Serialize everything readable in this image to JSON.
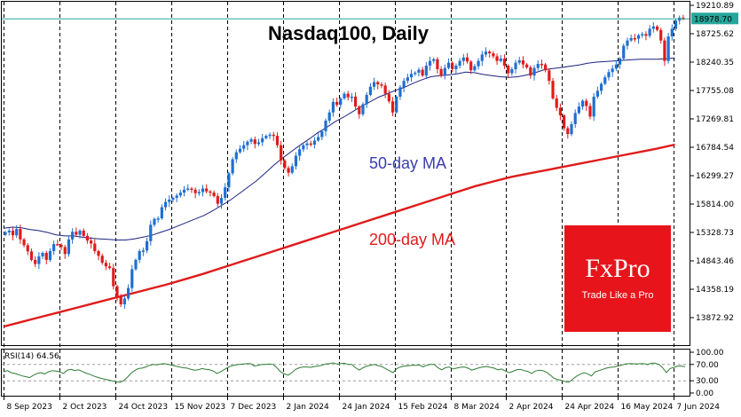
{
  "chart_data": {
    "type": "candlestick",
    "title": "Nasdaq100, Daily",
    "y_ticks": [
      "19210.89",
      "18725.62",
      "18240.35",
      "17755.08",
      "17269.81",
      "16784.54",
      "16299.27",
      "15814.00",
      "15328.73",
      "14843.46",
      "14358.19",
      "13872.92"
    ],
    "x_ticks": [
      "8 Sep 2023",
      "2 Oct 2023",
      "24 Oct 2023",
      "15 Nov 2023",
      "7 Dec 2023",
      "2 Jan 2024",
      "24 Jan 2024",
      "15 Feb 2024",
      "8 Mar 2024",
      "2 Apr 2024",
      "24 Apr 2024",
      "16 May 2024",
      "7 Jun 2024"
    ],
    "ylim": [
      13700,
      19230
    ],
    "last_price": "18978.70",
    "last_value": 18978.7,
    "grid": "vertical dashed",
    "colors": {
      "up": "#1f6fd1",
      "down": "#e01b1b",
      "ma50": "#1a237e",
      "ma200": "#e01b1b",
      "last_line": "#26a69a",
      "rsi": "#2e7d32"
    },
    "closes": [
      15330,
      15360,
      15280,
      15390,
      15210,
      15110,
      15005,
      14860,
      14790,
      14920,
      14980,
      14860,
      15010,
      15130,
      15120,
      15080,
      14960,
      15210,
      15340,
      15290,
      15360,
      15270,
      15190,
      15140,
      15010,
      14930,
      14810,
      14750,
      14720,
      14410,
      14240,
      14100,
      14200,
      14380,
      14700,
      14860,
      15010,
      15020,
      15180,
      15460,
      15560,
      15570,
      15760,
      15850,
      15890,
      15920,
      15960,
      16010,
      16060,
      16080,
      16060,
      16000,
      16020,
      16080,
      16030,
      16010,
      15950,
      15820,
      15920,
      16100,
      16340,
      16580,
      16700,
      16760,
      16820,
      16880,
      16920,
      16840,
      16870,
      16940,
      16980,
      17000,
      16980,
      16820,
      16560,
      16430,
      16350,
      16460,
      16640,
      16750,
      16820,
      16850,
      16830,
      16900,
      16960,
      17060,
      17240,
      17380,
      17560,
      17510,
      17620,
      17700,
      17640,
      17650,
      17480,
      17350,
      17520,
      17680,
      17820,
      17900,
      17860,
      17840,
      17700,
      17570,
      17380,
      17650,
      17810,
      17920,
      17980,
      18040,
      18060,
      18110,
      18010,
      18180,
      18260,
      18290,
      18120,
      18010,
      18140,
      18230,
      18120,
      18180,
      18260,
      18320,
      18250,
      18100,
      18170,
      18260,
      18370,
      18420,
      18390,
      18340,
      18260,
      18300,
      18180,
      18050,
      18120,
      18230,
      18270,
      18200,
      18150,
      18010,
      18140,
      18210,
      18200,
      18100,
      17920,
      17620,
      17460,
      17330,
      17110,
      17010,
      17180,
      17370,
      17480,
      17580,
      17490,
      17310,
      17650,
      17750,
      17870,
      17980,
      18070,
      18130,
      18200,
      18300,
      18520,
      18610,
      18650,
      18640,
      18700,
      18720,
      18690,
      18810,
      18850,
      18790,
      18610,
      18260,
      18680,
      18810,
      18950,
      19000,
      18978.7
    ],
    "ma50": [
      15400,
      15420,
      15410,
      15380,
      15360,
      15330,
      15290,
      15270,
      15270,
      15250,
      15230,
      15220,
      15210,
      15200,
      15200,
      15220,
      15250,
      15280,
      15330,
      15380,
      15440,
      15500,
      15560,
      15620,
      15700,
      15790,
      15880,
      15990,
      16100,
      16210,
      16340,
      16480,
      16600,
      16710,
      16820,
      16920,
      17030,
      17120,
      17220,
      17300,
      17390,
      17480,
      17560,
      17640,
      17700,
      17760,
      17810,
      17880,
      17940,
      17990,
      18010,
      18020,
      18040,
      18070,
      18060,
      18030,
      18010,
      17990,
      17980,
      17990,
      18020,
      18060,
      18110,
      18130,
      18150,
      18170,
      18190,
      18220,
      18240,
      18250,
      18260,
      18270,
      18280,
      18290,
      18290,
      18290,
      18300,
      18310
    ],
    "ma200": [
      13720,
      13800,
      13880,
      13960,
      14040,
      14120,
      14200,
      14280,
      14360,
      14440,
      14530,
      14620,
      14720,
      14820,
      14920,
      15020,
      15120,
      15220,
      15320,
      15420,
      15520,
      15620,
      15720,
      15820,
      15920,
      16020,
      16120,
      16200,
      16280,
      16340,
      16400,
      16460,
      16520,
      16580,
      16640,
      16700,
      16760,
      16830
    ],
    "rsi": {
      "label": "RSI(14)",
      "value": "64.56",
      "ticks": [
        "100.00",
        "70.00",
        "30.00",
        "0.00"
      ],
      "ylim": [
        0,
        100
      ],
      "series": [
        52,
        55,
        50,
        48,
        45,
        42,
        40,
        38,
        44,
        48,
        50,
        47,
        52,
        55,
        54,
        52,
        48,
        56,
        58,
        55,
        57,
        53,
        49,
        46,
        42,
        39,
        36,
        34,
        32,
        30,
        28,
        26,
        30,
        38,
        48,
        55,
        60,
        61,
        64,
        68,
        70,
        69,
        71,
        72,
        70,
        68,
        66,
        64,
        62,
        61,
        58,
        56,
        57,
        60,
        58,
        57,
        54,
        48,
        52,
        58,
        63,
        67,
        69,
        70,
        71,
        72,
        72,
        66,
        68,
        70,
        70,
        71,
        70,
        62,
        52,
        47,
        44,
        50,
        58,
        62,
        64,
        64,
        63,
        65,
        66,
        68,
        71,
        72,
        74,
        71,
        72,
        73,
        70,
        70,
        62,
        56,
        62,
        66,
        68,
        70,
        67,
        65,
        60,
        55,
        50,
        60,
        64,
        66,
        67,
        68,
        68,
        69,
        64,
        68,
        70,
        70,
        62,
        57,
        62,
        64,
        59,
        61,
        63,
        64,
        61,
        56,
        59,
        62,
        64,
        65,
        63,
        61,
        57,
        59,
        54,
        50,
        53,
        57,
        58,
        55,
        53,
        48,
        54,
        56,
        55,
        51,
        44,
        36,
        33,
        31,
        28,
        27,
        34,
        41,
        46,
        50,
        47,
        42,
        52,
        55,
        58,
        61,
        63,
        64,
        66,
        68,
        71,
        72,
        72,
        71,
        72,
        72,
        70,
        73,
        73,
        70,
        62,
        50,
        60,
        63,
        66,
        66,
        64.56
      ]
    }
  },
  "annotations": {
    "ma50_label": "50-day MA",
    "ma200_label": "200-day MA"
  },
  "logo": {
    "brand": "FxPro",
    "tagline": "Trade Like a Pro",
    "color": "#e8141b"
  }
}
